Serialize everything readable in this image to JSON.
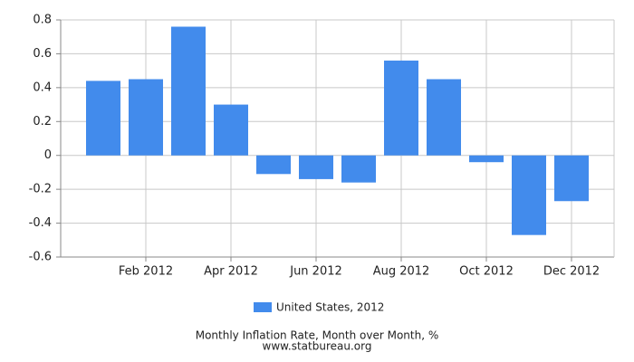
{
  "chart_data": {
    "type": "bar",
    "title": "Monthly Inflation Rate, Month over Month, %",
    "source": "www.statbureau.org",
    "categories": [
      null,
      "Feb 2012",
      null,
      "Apr 2012",
      null,
      "Jun 2012",
      null,
      "Aug 2012",
      null,
      "Oct 2012",
      null,
      "Dec 2012"
    ],
    "series": [
      {
        "name": "United States, 2012",
        "color": "#428bec",
        "values": [
          0.44,
          0.45,
          0.76,
          0.3,
          -0.11,
          -0.14,
          -0.16,
          0.56,
          0.45,
          -0.04,
          -0.47,
          -0.27
        ]
      }
    ],
    "ylim": [
      -0.6,
      0.8
    ],
    "yticks": [
      -0.6,
      -0.4,
      -0.2,
      0,
      0.2,
      0.4,
      0.6,
      0.8
    ],
    "grid": true
  }
}
